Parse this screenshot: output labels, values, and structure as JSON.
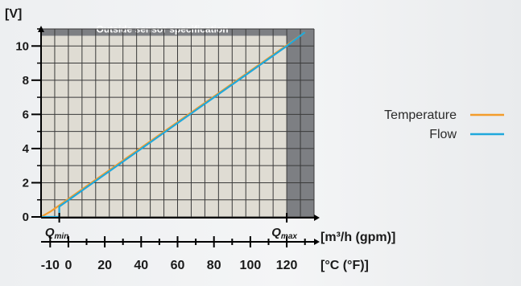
{
  "chart_data": {
    "type": "line",
    "ylabel": "[V]",
    "ylim": [
      0,
      11
    ],
    "yticks": [
      0,
      2,
      4,
      6,
      8,
      10
    ],
    "top_band_label": "Outside sensor specification",
    "flow_axis": {
      "label_html": "[m³/h (gpm)]",
      "markers": [
        {
          "label": "Q",
          "sub": "min",
          "x_temp": -5
        },
        {
          "label": "Q",
          "sub": "max",
          "x_temp": 120
        }
      ]
    },
    "temp_axis": {
      "label": "[°C (°F)]",
      "range": [
        -15,
        135
      ],
      "ticks": [
        -10,
        0,
        20,
        40,
        60,
        80,
        100,
        120
      ],
      "tick_labels": [
        "-10",
        "0",
        "20",
        "40",
        "60",
        "80",
        "100",
        "120"
      ]
    },
    "outside_spec_from_temp": 120,
    "series": [
      {
        "name": "Temperature",
        "color": "#f39c2b",
        "points": [
          [
            -15,
            0
          ],
          [
            -10,
            0.3
          ],
          [
            130,
            10.8
          ]
        ]
      },
      {
        "name": "Flow",
        "color": "#1fa8dc",
        "points": [
          [
            -15,
            0
          ],
          [
            -5,
            0
          ],
          [
            -5,
            0.6
          ],
          [
            120,
            10
          ],
          [
            130,
            10.8
          ]
        ]
      }
    ],
    "colors": {
      "plot_bg": "#dfdcd3",
      "outside_spec": "#7d7f83",
      "grid": "#3a3a3a"
    }
  }
}
